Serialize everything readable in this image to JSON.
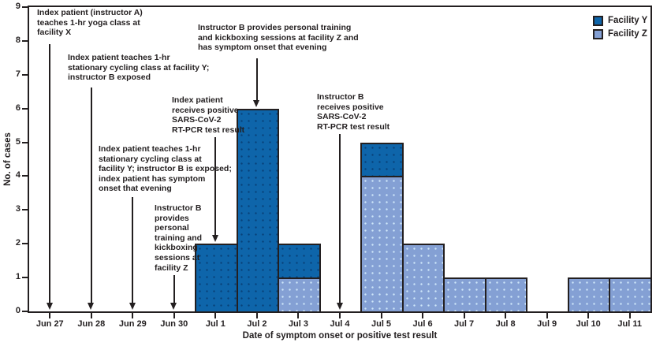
{
  "chart_data": {
    "type": "bar",
    "stacked": true,
    "xlabel": "Date of symptom onset or positive test result",
    "ylabel": "No. of cases",
    "ylim": [
      0,
      9
    ],
    "yticks": [
      0,
      1,
      2,
      3,
      4,
      5,
      6,
      7,
      8,
      9
    ],
    "grid": false,
    "legend_position": "top-right",
    "categories": [
      "Jun 27",
      "Jun 28",
      "Jun 29",
      "Jun 30",
      "Jul 1",
      "Jul 2",
      "Jul 3",
      "Jul 4",
      "Jul 5",
      "Jul 6",
      "Jul 7",
      "Jul 8",
      "Jul 9",
      "Jul 10",
      "Jul 11"
    ],
    "series": [
      {
        "name": "Facility Y",
        "color": "#0e65aa",
        "values": [
          0,
          0,
          0,
          0,
          2,
          6,
          1,
          0,
          1,
          0,
          0,
          0,
          0,
          0,
          0
        ]
      },
      {
        "name": "Facility Z",
        "color": "#84a0d4",
        "values": [
          0,
          0,
          0,
          0,
          0,
          0,
          1,
          0,
          4,
          2,
          1,
          1,
          0,
          1,
          1
        ]
      }
    ],
    "stack_order_bottom_to_top": [
      "Facility Z",
      "Facility Y"
    ],
    "axis_color": "#231f20",
    "annotations": [
      {
        "id": "yoga-class-jun27",
        "lines": [
          "Index patient (instructor A)",
          "teaches 1-hr yoga class at",
          "facility X"
        ],
        "category": "Jun 27",
        "points_to": "axis",
        "text_left": 47,
        "text_top": 10,
        "arrow_top": 56
      },
      {
        "id": "cycling-class-jun28",
        "lines": [
          "Index patient teaches 1-hr",
          "stationary cycling class at facility Y;",
          "instructor B exposed"
        ],
        "category": "Jun 28",
        "points_to": "axis",
        "text_left": 86,
        "text_top": 67,
        "arrow_top": 111
      },
      {
        "id": "cycling-class-jun29",
        "lines": [
          "Index patient teaches 1-hr",
          "stationary cycling class at",
          "facility Y; instructor B is exposed;",
          "index patient has symptom",
          "onset that evening"
        ],
        "category": "Jun 29",
        "points_to": "axis",
        "text_left": 125,
        "text_top": 183,
        "arrow_top": 250
      },
      {
        "id": "training-sessions-jun30",
        "lines": [
          "Instructor B",
          "provides",
          "personal",
          "training and",
          "kickboxing",
          "sessions at",
          "facility Z"
        ],
        "category": "Jun 30",
        "points_to": "axis",
        "text_left": 196,
        "text_top": 258,
        "arrow_top": 349
      },
      {
        "id": "index-patient-positive-jul1",
        "lines": [
          "Index patient",
          "receives positive",
          "SARS-CoV-2",
          "RT-PCR test result"
        ],
        "category": "Jul 1",
        "points_to": "bar",
        "text_left": 218,
        "text_top": 121,
        "arrow_top": 174
      },
      {
        "id": "training-sessions-jul2",
        "lines": [
          "Instructor B provides personal training",
          "and kickboxing sessions at facility Z and",
          "has symptom onset that evening"
        ],
        "category": "Jul 2",
        "points_to": "bar",
        "text_left": 251,
        "text_top": 29,
        "arrow_top": 74
      },
      {
        "id": "instructor-b-positive-jul4",
        "lines": [
          "Instructor B",
          "receives positive",
          "SARS-CoV-2",
          "RT-PCR test result"
        ],
        "category": "Jul 4",
        "points_to": "axis",
        "text_left": 402,
        "text_top": 117,
        "arrow_top": 170
      }
    ]
  }
}
